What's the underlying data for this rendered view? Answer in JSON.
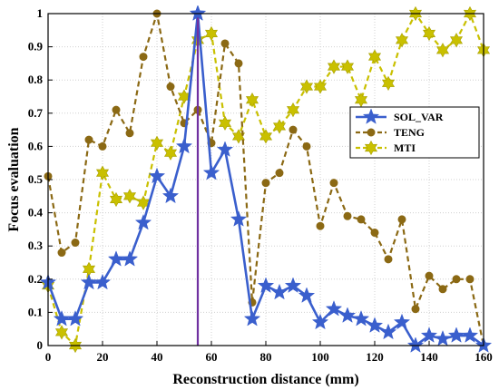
{
  "chart_data": {
    "type": "line",
    "title": "",
    "xlabel": "Reconstruction distance (mm)",
    "ylabel": "Focus evaluation",
    "xlim": [
      0,
      160
    ],
    "ylim": [
      0,
      1
    ],
    "xticks": [
      0,
      20,
      40,
      60,
      80,
      100,
      120,
      140,
      160
    ],
    "xtick_labels": [
      "0",
      "20",
      "40",
      "60",
      "80",
      "100",
      "120",
      "140",
      "160"
    ],
    "yticks": [
      0,
      0.1,
      0.2,
      0.3,
      0.4,
      0.5,
      0.6,
      0.7,
      0.8,
      0.9,
      1
    ],
    "ytick_labels": [
      "0",
      "0.1",
      "0.2",
      "0.3",
      "0.4",
      "0.5",
      "0.6",
      "0.7",
      "0.8",
      "0.9",
      "1"
    ],
    "grid": true,
    "legend_position": "right",
    "x": [
      0,
      5,
      10,
      15,
      20,
      25,
      30,
      35,
      40,
      45,
      50,
      55,
      60,
      65,
      70,
      75,
      80,
      85,
      90,
      95,
      100,
      105,
      110,
      115,
      120,
      125,
      130,
      135,
      140,
      145,
      150,
      155,
      160
    ],
    "vertical_marker": {
      "x": 55,
      "color": "#7030a0"
    },
    "series": [
      {
        "name": "SOL_VAR",
        "color": "#3a5fcd",
        "style": "solid",
        "marker": "star",
        "values": [
          0.19,
          0.08,
          0.08,
          0.19,
          0.19,
          0.26,
          0.26,
          0.37,
          0.51,
          0.45,
          0.6,
          1.0,
          0.52,
          0.59,
          0.38,
          0.08,
          0.18,
          0.16,
          0.18,
          0.15,
          0.07,
          0.11,
          0.09,
          0.08,
          0.06,
          0.04,
          0.07,
          0.0,
          0.03,
          0.02,
          0.03,
          0.03,
          0.0
        ]
      },
      {
        "name": "TENG",
        "color": "#8b6914",
        "style": "dashed",
        "marker": "circle",
        "values": [
          0.51,
          0.28,
          0.31,
          0.62,
          0.6,
          0.71,
          0.64,
          0.87,
          1.0,
          0.78,
          0.67,
          0.71,
          0.61,
          0.91,
          0.85,
          0.13,
          0.49,
          0.52,
          0.65,
          0.6,
          0.36,
          0.49,
          0.39,
          0.38,
          0.34,
          0.26,
          0.38,
          0.11,
          0.21,
          0.17,
          0.2,
          0.2,
          0.0
        ]
      },
      {
        "name": "MTI",
        "color": "#c9c000",
        "style": "dashed",
        "marker": "hexagram",
        "values": [
          0.18,
          0.04,
          0.0,
          0.23,
          0.52,
          0.44,
          0.45,
          0.43,
          0.61,
          0.58,
          0.75,
          0.92,
          0.94,
          0.67,
          0.63,
          0.74,
          0.63,
          0.66,
          0.71,
          0.78,
          0.78,
          0.84,
          0.84,
          0.74,
          0.87,
          0.79,
          0.92,
          1.0,
          0.94,
          0.89,
          0.92,
          1.0,
          0.89
        ]
      }
    ]
  }
}
